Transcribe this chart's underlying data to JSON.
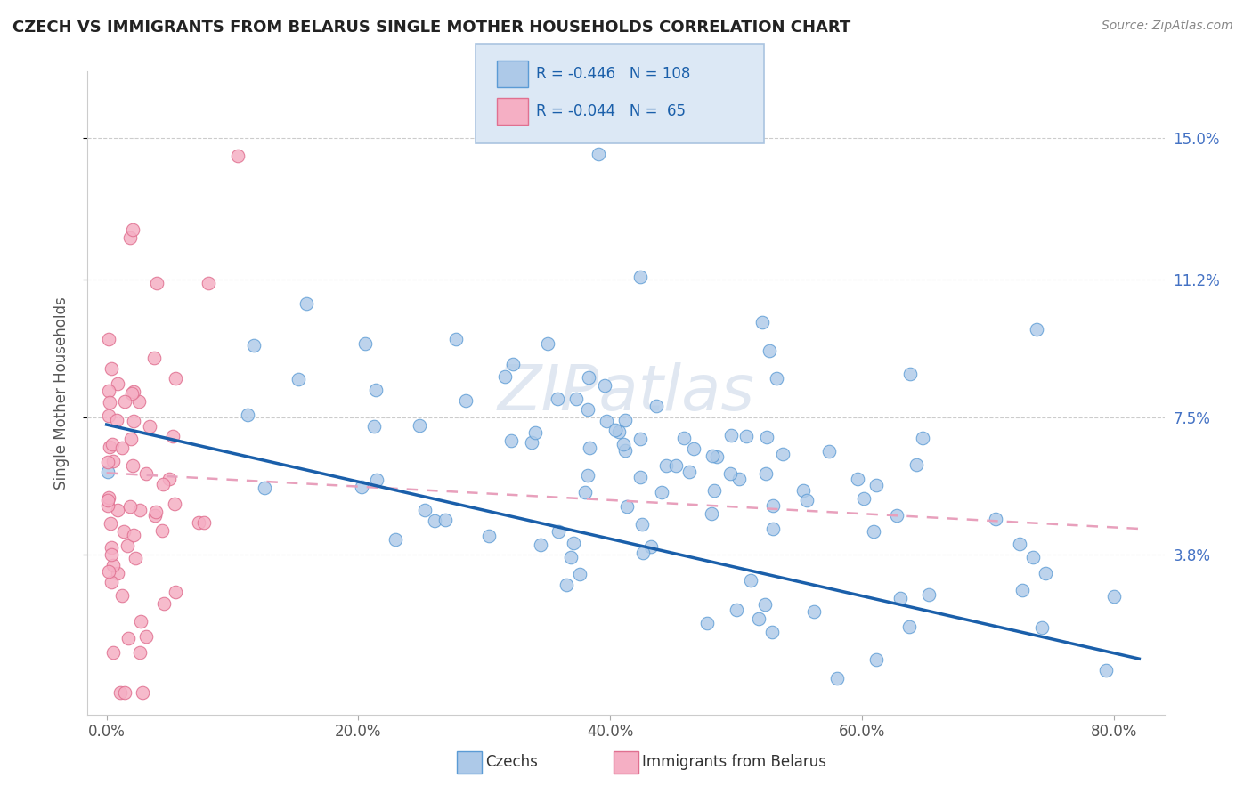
{
  "title": "CZECH VS IMMIGRANTS FROM BELARUS SINGLE MOTHER HOUSEHOLDS CORRELATION CHART",
  "source": "Source: ZipAtlas.com",
  "ylabel": "Single Mother Households",
  "xlabel": "",
  "ytick_labels": [
    "3.8%",
    "7.5%",
    "11.2%",
    "15.0%"
  ],
  "ytick_values": [
    0.038,
    0.075,
    0.112,
    0.15
  ],
  "xtick_labels": [
    "0.0%",
    "20.0%",
    "40.0%",
    "60.0%",
    "80.0%"
  ],
  "xtick_values": [
    0.0,
    0.2,
    0.4,
    0.6,
    0.8
  ],
  "xlim": [
    -0.015,
    0.84
  ],
  "ylim": [
    -0.005,
    0.168
  ],
  "legend_labels": [
    "Czechs",
    "Immigrants from Belarus"
  ],
  "czech_color": "#adc9e8",
  "belarus_color": "#f5afc4",
  "czech_edge_color": "#5b9bd5",
  "belarus_edge_color": "#e07090",
  "trend_czech_color": "#1a5faa",
  "trend_belarus_color": "#e8a0bc",
  "czech_R": -0.446,
  "czech_N": 108,
  "belarus_R": -0.044,
  "belarus_N": 65,
  "background_color": "#ffffff",
  "grid_color": "#cccccc",
  "title_color": "#222222",
  "axis_label_color": "#555555",
  "right_tick_color": "#4472c4",
  "legend_box_color": "#dce8f5",
  "legend_border_color": "#aac4e0",
  "watermark_color": "#ccd8e8"
}
